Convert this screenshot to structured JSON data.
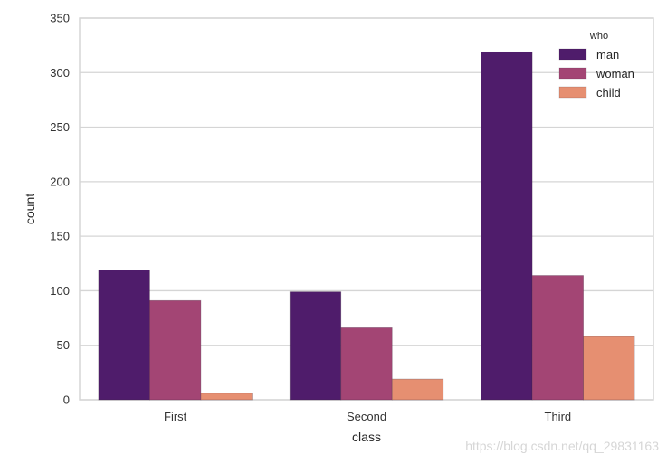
{
  "chart_data": {
    "type": "bar",
    "title": "",
    "xlabel": "class",
    "ylabel": "count",
    "categories": [
      "First",
      "Second",
      "Third"
    ],
    "series": [
      {
        "name": "man",
        "color": "#4f1c6b",
        "values": [
          119,
          99,
          319
        ]
      },
      {
        "name": "woman",
        "color": "#a34574",
        "values": [
          91,
          66,
          114
        ]
      },
      {
        "name": "child",
        "color": "#e68f71",
        "values": [
          6,
          19,
          58
        ]
      }
    ],
    "ylim": [
      0,
      350
    ],
    "yticks": [
      0,
      50,
      100,
      150,
      200,
      250,
      300,
      350
    ],
    "grid": "horizontal",
    "legend": {
      "title": "who",
      "position": "upper right",
      "entries": [
        "man",
        "woman",
        "child"
      ]
    }
  },
  "watermark": "https://blog.csdn.net/qq_29831163"
}
